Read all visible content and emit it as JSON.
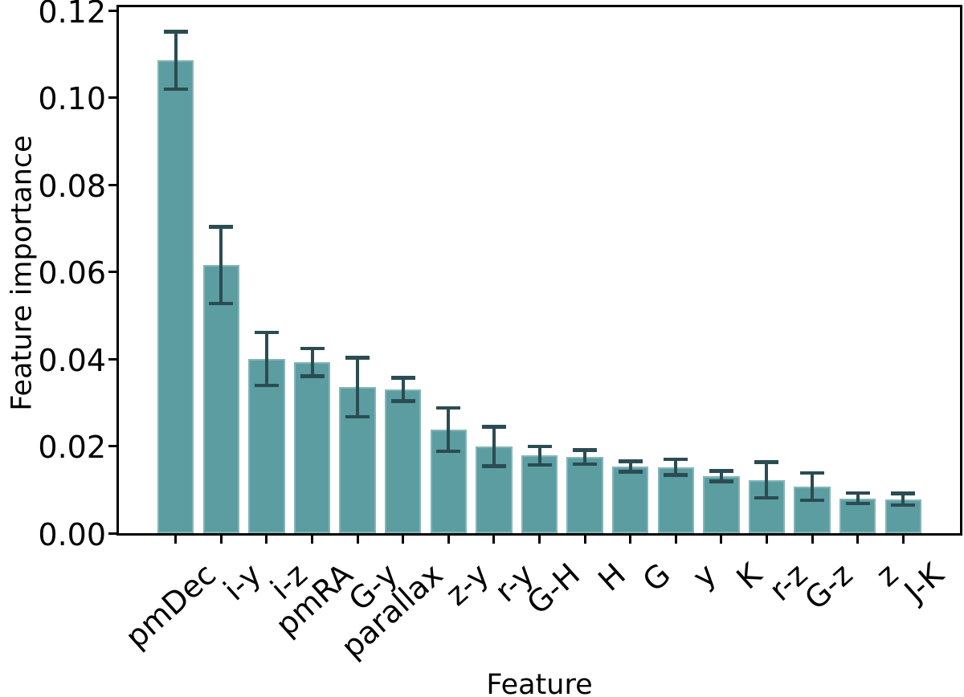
{
  "figure": {
    "background_color": "#FFFFFF",
    "axis_color": "#000000",
    "text_color": "#000000"
  },
  "chart_data": {
    "type": "bar",
    "xlabel": "Feature",
    "ylabel": "Feature importance",
    "categories": [
      "pmDec",
      "i-y",
      "i-z",
      "pmRA",
      "G-y",
      "parallax",
      "z-y",
      "r-y",
      "G-H",
      "H",
      "G",
      "y",
      "K",
      "r-z",
      "G-z",
      "z",
      "J-K"
    ],
    "values": [
      0.1085,
      0.0615,
      0.04,
      0.0392,
      0.0335,
      0.033,
      0.0238,
      0.0199,
      0.0178,
      0.0175,
      0.0153,
      0.0152,
      0.0131,
      0.0122,
      0.0107,
      0.008,
      0.0078
    ],
    "error_bars": [
      0.0066,
      0.0088,
      0.0061,
      0.0032,
      0.0068,
      0.0027,
      0.005,
      0.0045,
      0.0021,
      0.0016,
      0.0012,
      0.0018,
      0.0012,
      0.0041,
      0.0031,
      0.0012,
      0.0013
    ],
    "yticks": [
      "0.00",
      "0.02",
      "0.04",
      "0.06",
      "0.08",
      "0.10",
      "0.12"
    ],
    "ylim": [
      0.0,
      0.12
    ],
    "grid": false,
    "legend": false,
    "x_tick_rotation_deg": 42,
    "bar_color": "#5B9DA0",
    "error_bar_color": "#2B4C53"
  }
}
